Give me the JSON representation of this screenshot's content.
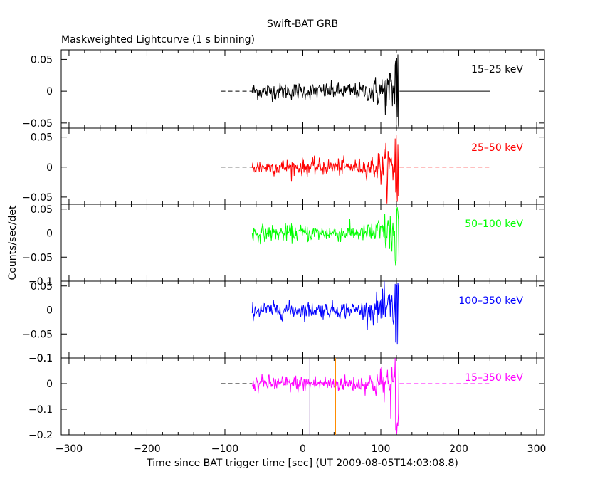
{
  "header": {
    "title": "Swift-BAT GRB",
    "subtitle": "Maskweighted Lightcurve (1 s binning)"
  },
  "axes": {
    "xlabel": "Time since BAT trigger time [sec] (UT 2009-08-05T14:03:08.8)",
    "ylabel": "Counts/sec/det"
  },
  "chart_data": {
    "type": "line",
    "title": "Swift-BAT GRB",
    "subtitle": "Maskweighted Lightcurve (1 s binning)",
    "xlabel": "Time since BAT trigger time [sec] (UT 2009-08-05T14:03:08.8)",
    "ylabel": "Counts/sec/det",
    "xlim": [
      -310,
      310
    ],
    "x_ticks": [
      -300,
      -200,
      -100,
      0,
      100,
      200,
      300
    ],
    "x_tick_labels": [
      "−300",
      "−200",
      "−100",
      "0",
      "100",
      "200",
      "300"
    ],
    "grid": false,
    "data_interval": [
      -65,
      124
    ],
    "baseline_interval": [
      -105,
      240
    ],
    "panels": [
      {
        "name": "15–25 keV",
        "color": "#000000",
        "ylim": [
          -0.058,
          0.065
        ],
        "y_ticks": [
          0.05,
          0,
          -0.05
        ],
        "y_tick_labels": [
          "0.05",
          "0",
          "−0.05"
        ],
        "burst_extremes": [
          0.062,
          -0.058
        ]
      },
      {
        "name": "25–50 keV",
        "color": "#ff0000",
        "ylim": [
          -0.062,
          0.065
        ],
        "y_ticks": [
          0.05,
          0,
          -0.05
        ],
        "y_tick_labels": [
          "0.05",
          "0",
          "−0.05"
        ],
        "burst_extremes": [
          0.062,
          -0.062
        ]
      },
      {
        "name": "50–100 keV",
        "color": "#00ff00",
        "ylim": [
          -0.1,
          0.06
        ],
        "y_ticks": [
          0.05,
          0,
          -0.05,
          -0.1
        ],
        "y_tick_labels": [
          "0.05",
          "0",
          "−0.05",
          "−0.1"
        ],
        "burst_extremes": [
          0.055,
          -0.1
        ]
      },
      {
        "name": "100–350 keV",
        "color": "#0000ff",
        "ylim": [
          -0.1,
          0.06
        ],
        "y_ticks": [
          0.05,
          0,
          -0.05,
          -0.1
        ],
        "y_tick_labels": [
          "0.05",
          "0",
          "−0.05",
          "−0.1"
        ],
        "burst_extremes": [
          0.058,
          -0.1
        ]
      },
      {
        "name": "15–350 keV",
        "color": "#ff00ff",
        "ylim": [
          -0.2,
          0.1
        ],
        "y_ticks": [
          0.1,
          0,
          -0.1,
          -0.2
        ],
        "y_tick_labels": [
          "0.1",
          "0",
          "−0.1",
          "−0.2"
        ],
        "burst_extremes": [
          0.1,
          -0.2
        ]
      }
    ],
    "markers": [
      {
        "x": 9,
        "color": "#4b0082"
      },
      {
        "x": 42,
        "color": "#ff8c00"
      }
    ]
  }
}
